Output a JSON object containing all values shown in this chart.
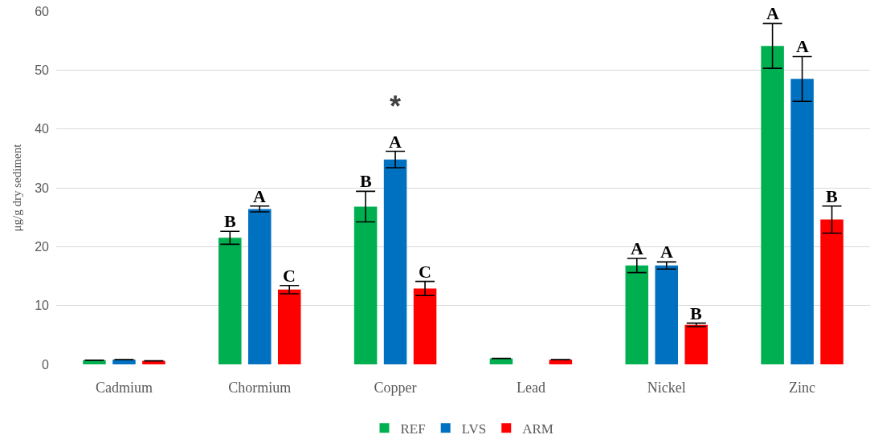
{
  "chart_data": {
    "type": "bar",
    "ylabel": "μg/g dry sediment",
    "categories": [
      "Cadmium",
      "Chormium",
      "Copper",
      "Lead",
      "Nickel",
      "Zinc"
    ],
    "series": [
      {
        "name": "REF",
        "color": "#00b050",
        "values": [
          0.7,
          21.5,
          26.8,
          1.0,
          16.8,
          54.1
        ],
        "errors": [
          null,
          1.1,
          2.6,
          null,
          1.2,
          3.8
        ],
        "value_labels": [
          null,
          "B",
          "B",
          null,
          "A",
          "A"
        ]
      },
      {
        "name": "LVS",
        "color": "#0070c0",
        "values": [
          0.8,
          26.4,
          34.8,
          null,
          16.8,
          48.5
        ],
        "errors": [
          null,
          0.5,
          1.4,
          null,
          0.6,
          3.8
        ],
        "value_labels": [
          null,
          "A",
          "A",
          null,
          "A",
          "A"
        ]
      },
      {
        "name": "ARM",
        "color": "#ff0000",
        "values": [
          0.6,
          12.7,
          12.9,
          0.8,
          6.7,
          24.6
        ],
        "errors": [
          null,
          0.7,
          1.2,
          null,
          0.3,
          2.3
        ],
        "value_labels": [
          null,
          "C",
          "C",
          null,
          "B",
          "B"
        ]
      }
    ],
    "annotations": [
      {
        "text": "*",
        "x": "Copper",
        "y": 34.8
      }
    ],
    "ylim": [
      0,
      60
    ],
    "yticks": [
      0,
      10,
      20,
      30,
      40,
      50,
      60
    ],
    "grid": "y",
    "legend": "bottom"
  }
}
